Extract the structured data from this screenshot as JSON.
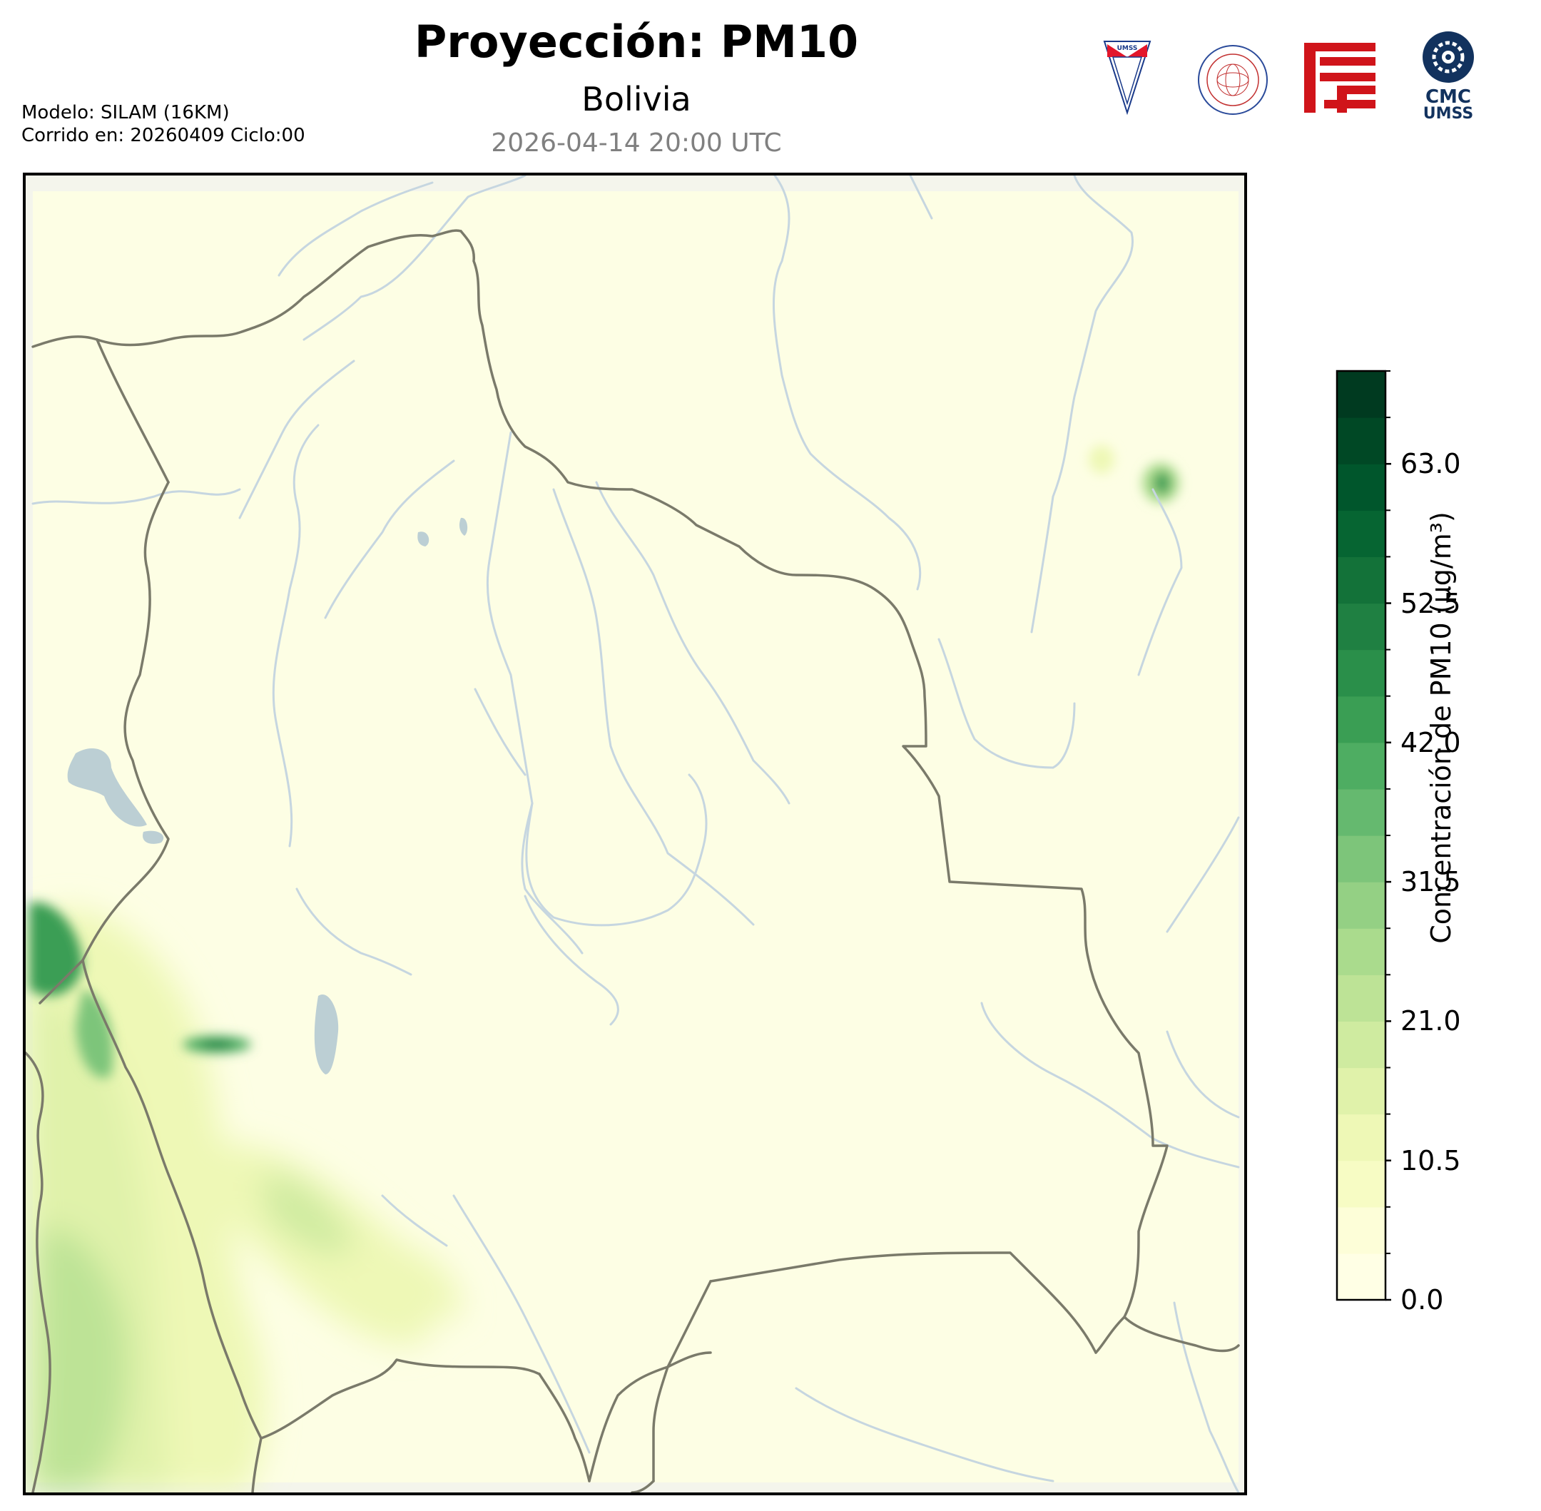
{
  "header": {
    "title": "Proyección: PM10",
    "subtitle": "Bolivia",
    "datetime": "2026-04-14 20:00 UTC"
  },
  "meta": {
    "model": "Modelo: SILAM (16KM)",
    "run": "Corrido en: 20260409 Ciclo:00"
  },
  "logos": {
    "umss_text": "UMSS",
    "cmc_line1": "CMC",
    "cmc_line2": "UMSS"
  },
  "colorbar": {
    "label": "Concentración de PM10 (µg/m³)",
    "min": 0,
    "max": 70,
    "tick_labels": [
      "0.0",
      "10.5",
      "21.0",
      "31.5",
      "42.0",
      "52.5",
      "63.0"
    ],
    "tick_values": [
      0,
      10.5,
      21,
      31.5,
      42,
      52.5,
      63
    ],
    "colors": [
      "#ffffe5",
      "#fdfed8",
      "#f7fcc4",
      "#eef8b6",
      "#e0f2aa",
      "#cfeba0",
      "#bde396",
      "#aadb8d",
      "#94d084",
      "#7dc57a",
      "#65b96f",
      "#4ead62",
      "#3a9e54",
      "#2a8f4a",
      "#1f8042",
      "#137239",
      "#066532",
      "#00562c",
      "#004825",
      "#003a20"
    ]
  },
  "map": {
    "region": "Bolivia",
    "colors": {
      "land": "#fdfee4",
      "border": "#7a7a6a",
      "river": "#c6d6e0",
      "lake": "#bccfd4",
      "frame": "#000000"
    }
  }
}
